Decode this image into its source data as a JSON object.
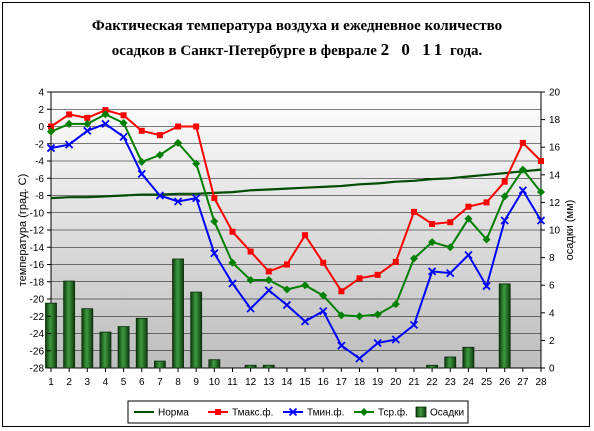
{
  "chart_data": {
    "type": "line",
    "title_line1": "Фактическая температура воздуха и ежедневное количество",
    "title_line2_prefix": "осадков в Санкт-Петербурге в феврале",
    "title_year": "2 0 11",
    "title_line2_suffix": "года.",
    "ylabel_left": "температура (град. С)",
    "ylabel_right": "осадки (мм)",
    "ylim_left": [
      -28,
      4
    ],
    "ylim_right": [
      0,
      20
    ],
    "left_ticks": [
      "4",
      "2",
      "0",
      "-2",
      "-4",
      "-6",
      "-8",
      "-10",
      "-12",
      "-14",
      "-16",
      "-18",
      "-20",
      "-22",
      "-24",
      "-26",
      "-28"
    ],
    "right_ticks": [
      "20",
      "18",
      "16",
      "14",
      "12",
      "10",
      "8",
      "6",
      "4",
      "2",
      "0"
    ],
    "categories": [
      "1",
      "2",
      "3",
      "4",
      "5",
      "6",
      "7",
      "8",
      "9",
      "10",
      "11",
      "12",
      "13",
      "14",
      "15",
      "16",
      "17",
      "18",
      "19",
      "20",
      "21",
      "22",
      "23",
      "24",
      "25",
      "26",
      "27",
      "28"
    ],
    "grid": true,
    "legend_position": "bottom",
    "series": [
      {
        "name": "Норма",
        "kind": "line",
        "axis": "left",
        "color": "#004d00",
        "marker": "none",
        "values": [
          -8.3,
          -8.2,
          -8.2,
          -8.1,
          -8.0,
          -7.9,
          -7.9,
          -7.8,
          -7.8,
          -7.7,
          -7.6,
          -7.4,
          -7.3,
          -7.2,
          -7.1,
          -7.0,
          -6.9,
          -6.7,
          -6.6,
          -6.4,
          -6.3,
          -6.1,
          -6.0,
          -5.8,
          -5.6,
          -5.4,
          -5.2,
          -5.0
        ]
      },
      {
        "name": "Тмакс.ф.",
        "kind": "line",
        "axis": "left",
        "color": "#ff0000",
        "marker": "square",
        "values": [
          0.0,
          1.4,
          1.0,
          1.9,
          1.3,
          -0.5,
          -1.0,
          0.0,
          0.0,
          -8.3,
          -12.2,
          -14.5,
          -16.8,
          -16.0,
          -12.6,
          -15.8,
          -19.1,
          -17.6,
          -17.2,
          -15.7,
          -9.9,
          -11.3,
          -11.1,
          -9.3,
          -8.8,
          -6.4,
          -1.9,
          -4.0
        ]
      },
      {
        "name": "Тмин.ф.",
        "kind": "line",
        "axis": "left",
        "color": "#0000ff",
        "marker": "x",
        "values": [
          -2.5,
          -2.1,
          -0.5,
          0.3,
          -1.2,
          -5.5,
          -8.0,
          -8.7,
          -8.3,
          -14.7,
          -18.2,
          -21.1,
          -19.0,
          -20.7,
          -22.6,
          -21.4,
          -25.4,
          -26.9,
          -25.1,
          -24.7,
          -23.0,
          -16.8,
          -17.0,
          -14.9,
          -18.5,
          -10.9,
          -7.4,
          -10.9
        ]
      },
      {
        "name": "Тср.ф.",
        "kind": "line",
        "axis": "left",
        "color": "#008000",
        "marker": "diamond",
        "values": [
          -0.6,
          0.3,
          0.3,
          1.4,
          0.4,
          -4.1,
          -3.3,
          -1.9,
          -4.3,
          -11.0,
          -15.8,
          -17.8,
          -17.8,
          -18.9,
          -18.4,
          -19.6,
          -21.9,
          -22.0,
          -21.8,
          -20.6,
          -15.3,
          -13.4,
          -14.0,
          -10.7,
          -13.1,
          -8.1,
          -5.0,
          -7.6
        ]
      },
      {
        "name": "Осадки",
        "kind": "bar",
        "axis": "right",
        "color": "#2e7d32",
        "values": [
          4.7,
          6.3,
          4.3,
          2.6,
          3.0,
          3.6,
          0.5,
          7.9,
          5.5,
          0.6,
          0.0,
          0.2,
          0.2,
          0.0,
          0.0,
          0.0,
          0.0,
          0.0,
          0.0,
          0.0,
          0.0,
          0.2,
          0.8,
          1.5,
          0.0,
          6.1,
          0.0,
          0.0
        ]
      }
    ]
  }
}
